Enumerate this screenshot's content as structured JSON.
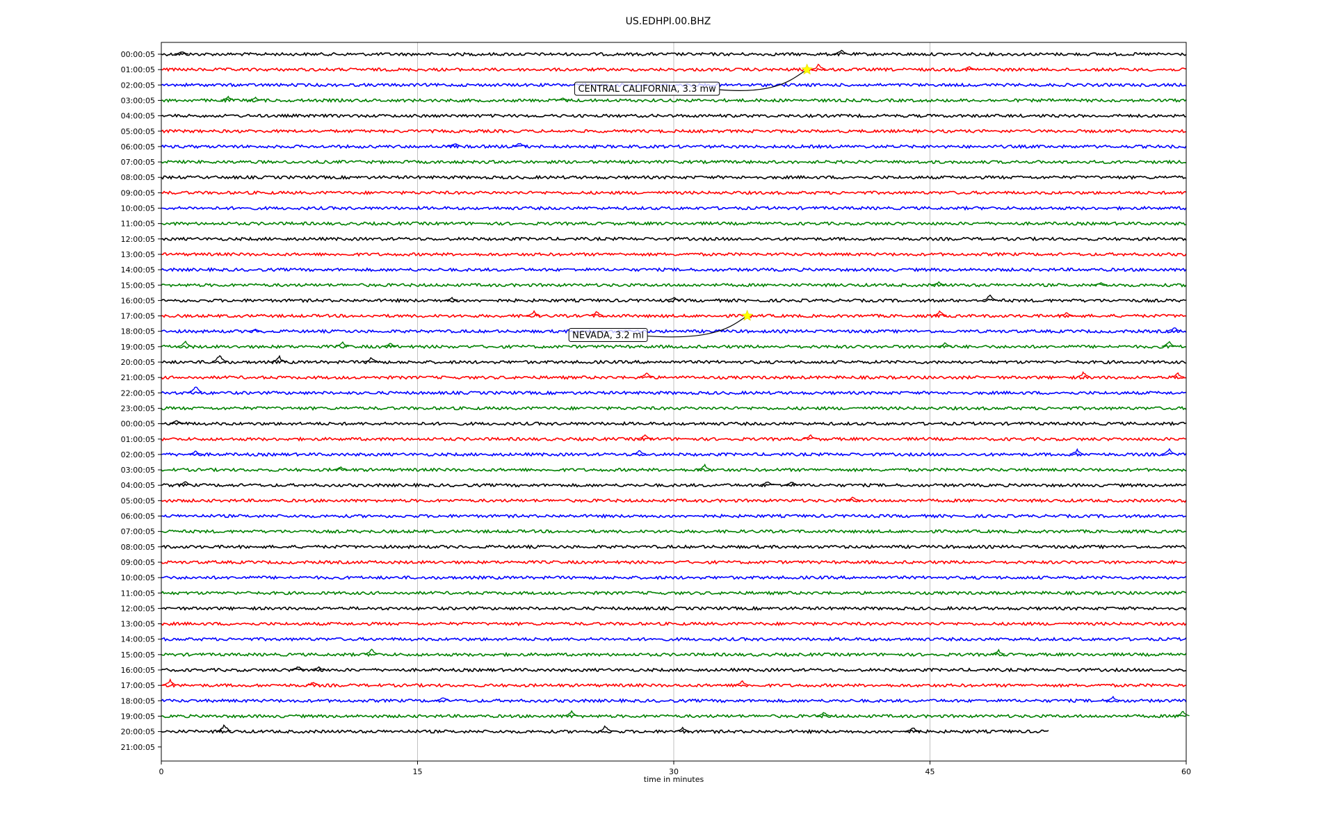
{
  "chart_data": {
    "type": "line",
    "title": "US.EDHPI.00.BHZ",
    "xlabel": "time in minutes",
    "ylabel": "",
    "xlim": [
      0,
      60
    ],
    "xticks": [
      0,
      15,
      30,
      45,
      60
    ],
    "grid": "vertical",
    "trace_colors": [
      "#000000",
      "#ff0000",
      "#0000ff",
      "#008000"
    ],
    "row_labels": [
      "00:00:05",
      "01:00:05",
      "02:00:05",
      "03:00:05",
      "04:00:05",
      "05:00:05",
      "06:00:05",
      "07:00:05",
      "08:00:05",
      "09:00:05",
      "10:00:05",
      "11:00:05",
      "12:00:05",
      "13:00:05",
      "14:00:05",
      "15:00:05",
      "16:00:05",
      "17:00:05",
      "18:00:05",
      "19:00:05",
      "20:00:05",
      "21:00:05",
      "22:00:05",
      "23:00:05",
      "00:00:05",
      "01:00:05",
      "02:00:05",
      "03:00:05",
      "04:00:05",
      "05:00:05",
      "06:00:05",
      "07:00:05",
      "08:00:05",
      "09:00:05",
      "10:00:05",
      "11:00:05",
      "12:00:05",
      "13:00:05",
      "14:00:05",
      "15:00:05",
      "16:00:05",
      "17:00:05",
      "18:00:05",
      "19:00:05",
      "20:00:05",
      "21:00:05"
    ],
    "last_trace_end_minutes": 52,
    "spikes": [
      [
        0,
        1.2,
        6
      ],
      [
        0,
        39.8,
        8
      ],
      [
        1,
        38.5,
        10
      ],
      [
        1,
        47.3,
        6
      ],
      [
        3,
        3.9,
        7
      ],
      [
        3,
        5.5,
        5
      ],
      [
        3,
        23.5,
        4
      ],
      [
        6,
        17.2,
        7
      ],
      [
        6,
        21,
        8
      ],
      [
        15,
        45.5,
        6
      ],
      [
        15,
        55,
        5
      ],
      [
        16,
        17,
        5
      ],
      [
        16,
        30,
        6
      ],
      [
        16,
        48.5,
        10
      ],
      [
        17,
        21.8,
        8
      ],
      [
        17,
        25.5,
        8
      ],
      [
        17,
        45.6,
        9
      ],
      [
        17,
        53,
        6
      ],
      [
        18,
        5.5,
        4
      ],
      [
        18,
        59.3,
        8
      ],
      [
        19,
        1.4,
        9
      ],
      [
        19,
        10.6,
        9
      ],
      [
        19,
        13.4,
        8
      ],
      [
        19,
        45.9,
        8
      ],
      [
        19,
        59,
        10
      ],
      [
        20,
        3.4,
        14
      ],
      [
        20,
        6.9,
        10
      ],
      [
        20,
        12.3,
        9
      ],
      [
        21,
        28.4,
        9
      ],
      [
        21,
        54,
        10
      ],
      [
        21,
        59.5,
        8
      ],
      [
        22,
        2,
        14
      ],
      [
        24,
        0.9,
        7
      ],
      [
        25,
        28.3,
        9
      ],
      [
        25,
        38,
        7
      ],
      [
        26,
        2,
        6
      ],
      [
        26,
        28,
        8
      ],
      [
        26,
        53.6,
        9
      ],
      [
        26,
        59,
        10
      ],
      [
        27,
        10.5,
        6
      ],
      [
        27,
        31.8,
        9
      ],
      [
        28,
        1.4,
        7
      ],
      [
        28,
        35.5,
        8
      ],
      [
        28,
        36.9,
        7
      ],
      [
        29,
        40.5,
        7
      ],
      [
        39,
        12.3,
        10
      ],
      [
        39,
        49,
        8
      ],
      [
        40,
        8,
        7
      ],
      [
        40,
        9.2,
        6
      ],
      [
        41,
        0.5,
        10
      ],
      [
        41,
        8.9,
        7
      ],
      [
        41,
        34,
        8
      ],
      [
        42,
        16.5,
        7
      ],
      [
        42,
        55.7,
        7
      ],
      [
        43,
        24,
        9
      ],
      [
        43,
        38.8,
        7
      ],
      [
        43,
        59.8,
        9
      ],
      [
        44,
        3.7,
        14
      ],
      [
        44,
        26,
        10
      ],
      [
        44,
        30.5,
        8
      ],
      [
        44,
        44,
        8
      ]
    ],
    "events": [
      {
        "label": "CENTRAL CALIFORNIA, 3.3 mw",
        "row": 1,
        "minute": 37.8
      },
      {
        "label": "NEVADA, 3.2 ml",
        "row": 17,
        "minute": 34.3
      }
    ]
  }
}
